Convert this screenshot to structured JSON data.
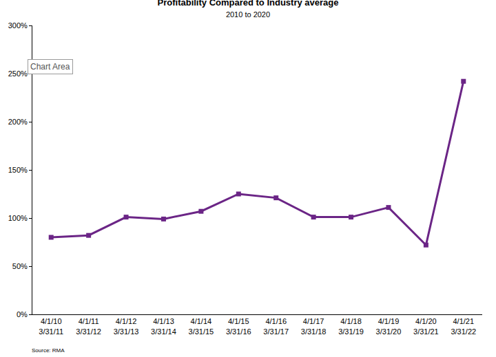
{
  "chart_data": {
    "type": "line",
    "title": "Profitability Compared to Industry average",
    "subtitle": "2010 to 2020",
    "categories": [
      "4/1/10\n3/31/11",
      "4/1/11\n3/31/12",
      "4/1/12\n3/31/13",
      "4/1/13\n3/31/14",
      "4/1/14\n3/31/15",
      "4/1/15\n3/31/16",
      "4/1/16\n3/31/17",
      "4/1/17\n3/31/18",
      "4/1/18\n3/31/19",
      "4/1/19\n3/31/20",
      "4/1/20\n3/31/21",
      "4/1/21\n3/31/22"
    ],
    "values": [
      80,
      82,
      101,
      99,
      107,
      125,
      121,
      101,
      101,
      111,
      72,
      242
    ],
    "color": "#6b2586",
    "marker": "square",
    "line_style": "solid",
    "ylim": [
      0,
      300
    ],
    "yticks": [
      {
        "value": 0,
        "label": "0%"
      },
      {
        "value": 50,
        "label": "50%"
      },
      {
        "value": 100,
        "label": "100%"
      },
      {
        "value": 150,
        "label": "150%"
      },
      {
        "value": 200,
        "label": "200%"
      },
      {
        "value": 250,
        "label": "250%"
      },
      {
        "value": 300,
        "label": "300%"
      }
    ],
    "grid": false,
    "annotations": [
      "Chart Area"
    ],
    "source": "Source: RMA"
  }
}
